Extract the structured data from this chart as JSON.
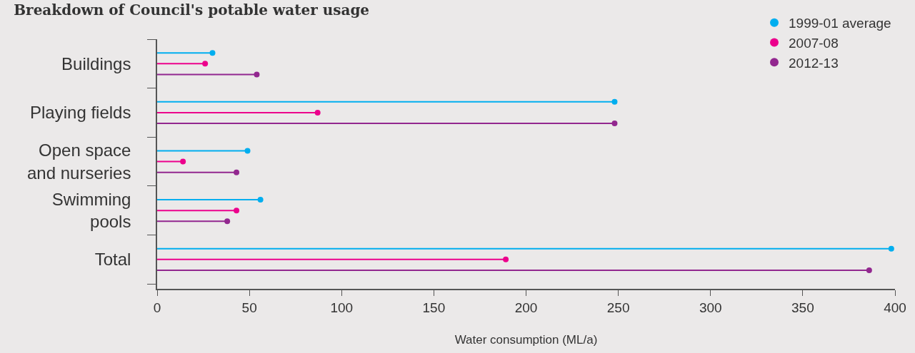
{
  "chart_data": {
    "type": "lollipop",
    "orientation": "horizontal",
    "title": "Breakdown of Council's potable water usage",
    "xlabel": "Water consumption (ML/a)",
    "categories": [
      "Buildings",
      "Playing fields",
      "Open space\nand nurseries",
      "Swimming\npools",
      "Total"
    ],
    "series": [
      {
        "name": "1999-01 average",
        "color": "#00aeef",
        "values": [
          30,
          248,
          49,
          56,
          398
        ]
      },
      {
        "name": "2007-08",
        "color": "#ec008c",
        "values": [
          26,
          87,
          14,
          43,
          189
        ]
      },
      {
        "name": "2012-13",
        "color": "#92278f",
        "values": [
          54,
          248,
          43,
          38,
          386
        ]
      }
    ],
    "xlim": [
      0,
      400
    ],
    "xticks": [
      0,
      50,
      100,
      150,
      200,
      250,
      300,
      350,
      400
    ],
    "grid": false,
    "legend": "top right",
    "marker": "circle"
  }
}
